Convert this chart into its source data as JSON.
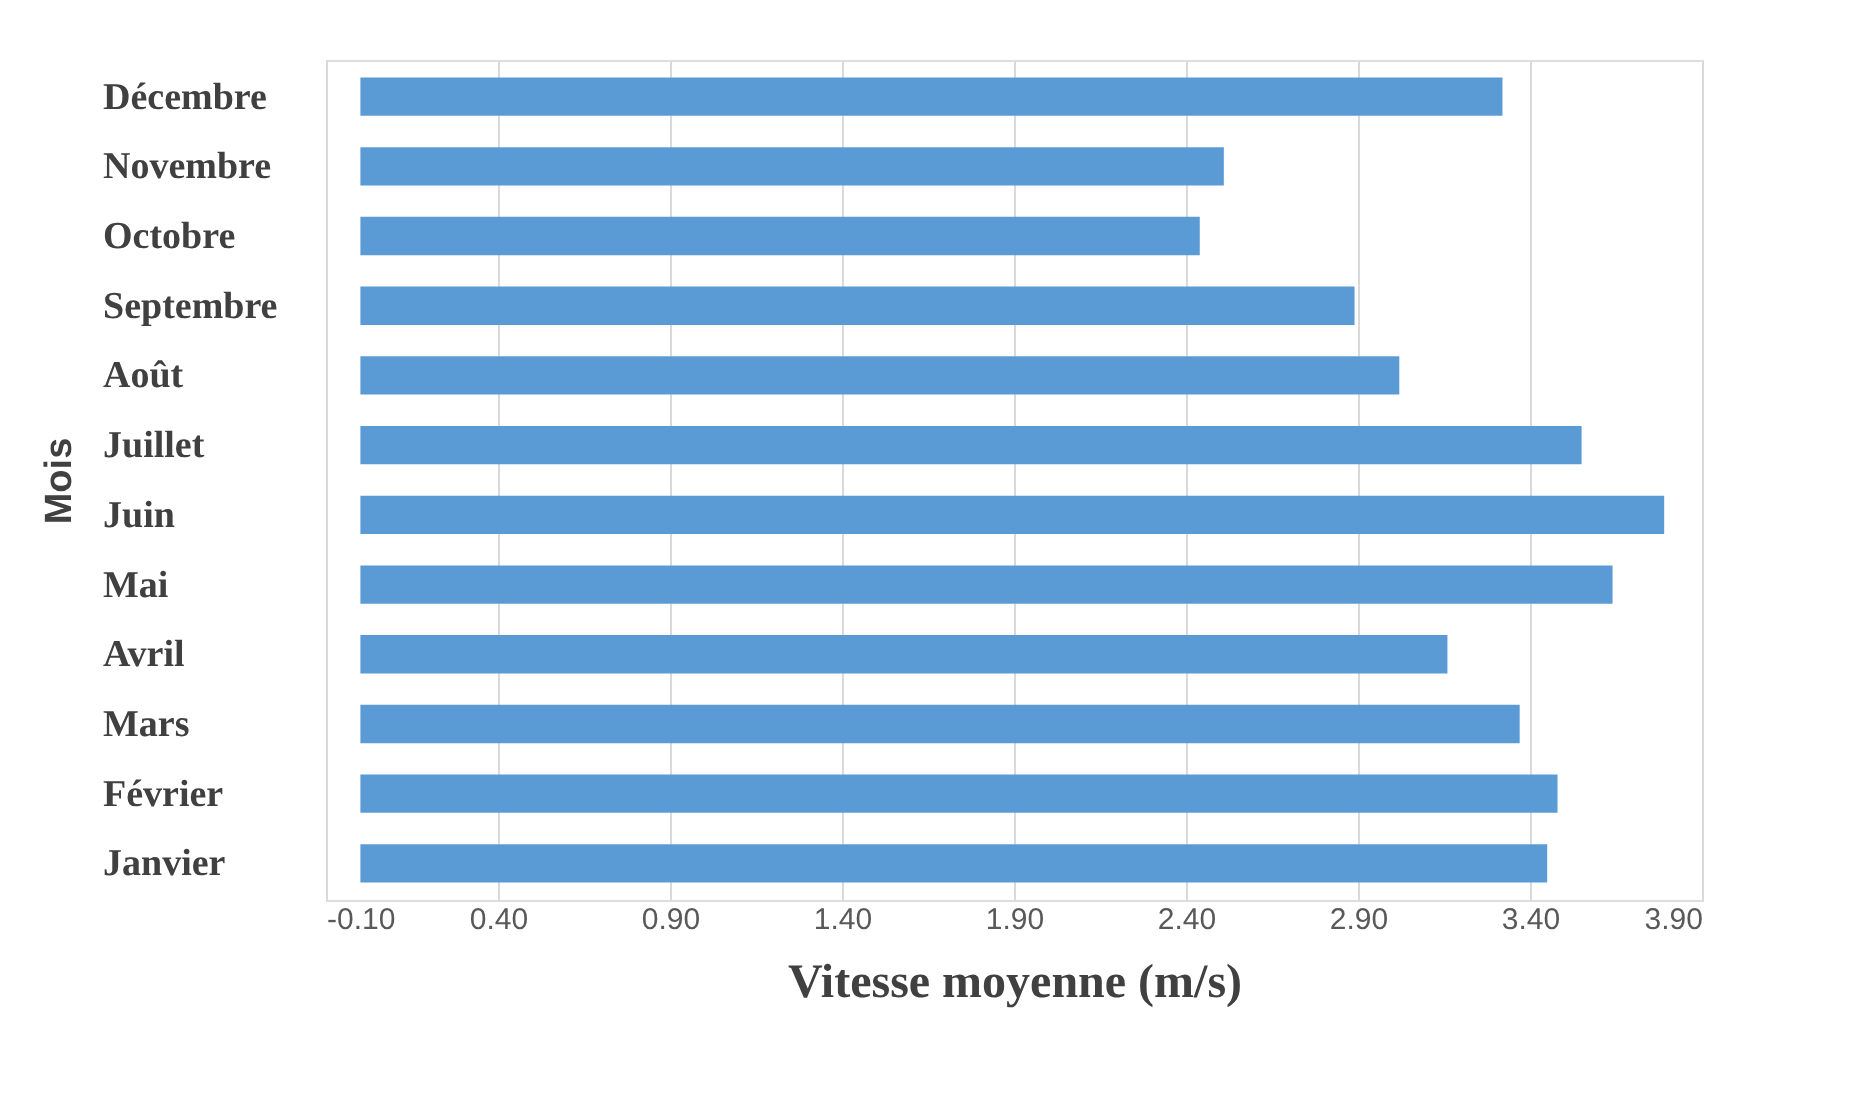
{
  "chart_data": {
    "type": "bar",
    "orientation": "horizontal",
    "xlabel": "Vitesse moyenne (m/s)",
    "ylabel": "Mois",
    "categories": [
      "Décembre",
      "Novembre",
      "Octobre",
      "Septembre",
      "Août",
      "Juillet",
      "Juin",
      "Mai",
      "Avril",
      "Mars",
      "Février",
      "Janvier"
    ],
    "values": [
      3.32,
      2.51,
      2.44,
      2.89,
      3.02,
      3.55,
      3.79,
      3.64,
      3.16,
      3.37,
      3.48,
      3.45
    ],
    "color": "#5b9bd5",
    "xlim": [
      -0.1,
      3.9
    ],
    "xticks": [
      {
        "value": -0.1,
        "label": "-0.10"
      },
      {
        "value": 0.4,
        "label": "0.40"
      },
      {
        "value": 0.9,
        "label": "0.90"
      },
      {
        "value": 1.4,
        "label": "1.40"
      },
      {
        "value": 1.9,
        "label": "1.90"
      },
      {
        "value": 2.4,
        "label": "2.40"
      },
      {
        "value": 2.9,
        "label": "2.90"
      },
      {
        "value": 3.4,
        "label": "3.40"
      },
      {
        "value": 3.9,
        "label": "3.90"
      }
    ],
    "grid": "x"
  }
}
